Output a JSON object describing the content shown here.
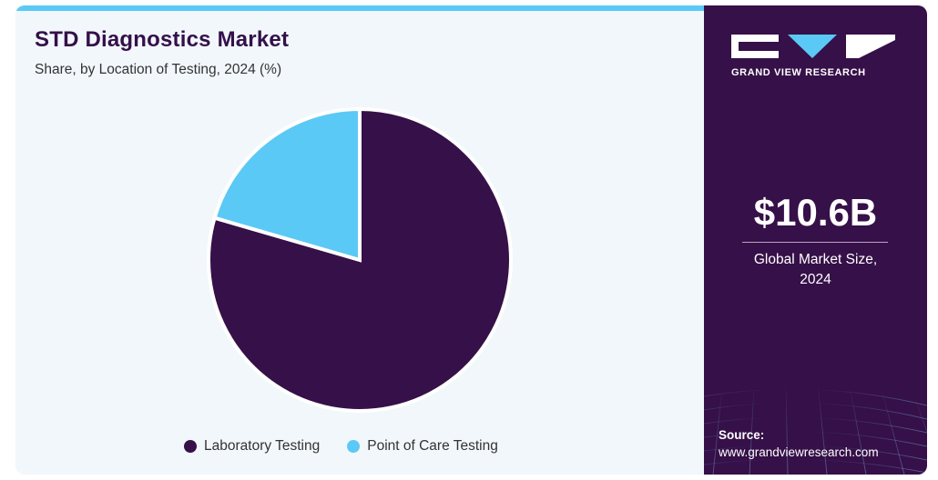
{
  "header": {
    "title": "STD Diagnostics Market",
    "subtitle": "Share, by Location of Testing, 2024 (%)"
  },
  "chart_data": {
    "type": "pie",
    "categories": [
      "Laboratory Testing",
      "Point of Care Testing"
    ],
    "values": [
      79.5,
      20.5
    ],
    "colors": [
      "#361048",
      "#5bc9f5"
    ],
    "legend_position": "bottom"
  },
  "sidebar": {
    "brand": "GRAND VIEW RESEARCH",
    "market_size": "$10.6B",
    "market_size_label_line1": "Global Market Size,",
    "market_size_label_line2": "2024",
    "source_label": "Source:",
    "source_url": "www.grandviewresearch.com"
  }
}
